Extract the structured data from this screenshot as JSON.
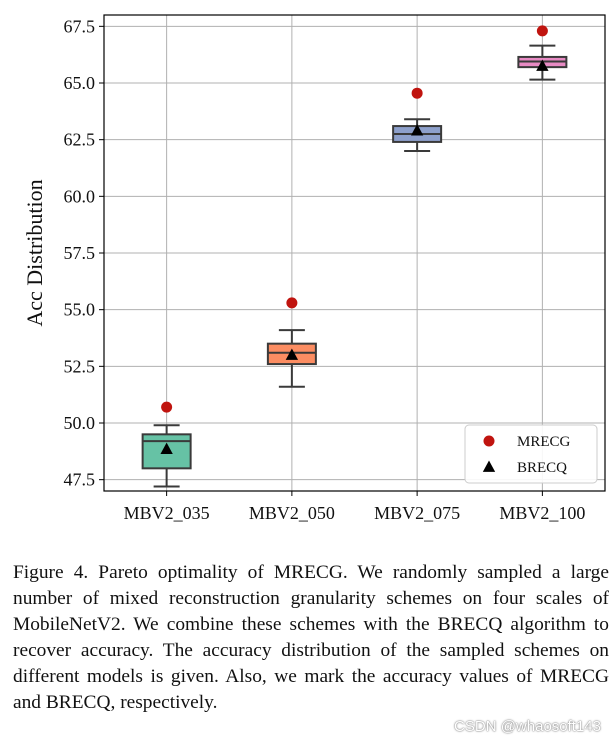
{
  "chart_data": {
    "type": "boxplot",
    "title": "",
    "xlabel": "",
    "ylabel": "Acc Distribution",
    "ylim": [
      47.0,
      68.0
    ],
    "yticks": [
      47.5,
      50.0,
      52.5,
      55.0,
      57.5,
      60.0,
      62.5,
      65.0,
      67.5
    ],
    "ytick_labels": [
      "47.5",
      "50.0",
      "52.5",
      "55.0",
      "57.5",
      "60.0",
      "62.5",
      "65.0",
      "67.5"
    ],
    "categories": [
      "MBV2_035",
      "MBV2_050",
      "MBV2_075",
      "MBV2_100"
    ],
    "grid": true,
    "legend_position": "bottom-right",
    "boxes": [
      {
        "category": "MBV2_035",
        "whisker_low": 47.2,
        "q1": 48.0,
        "median": 49.2,
        "q3": 49.5,
        "whisker_high": 49.9,
        "color": "#66c2a5"
      },
      {
        "category": "MBV2_050",
        "whisker_low": 51.6,
        "q1": 52.6,
        "median": 53.1,
        "q3": 53.5,
        "whisker_high": 54.1,
        "color": "#fc8d62"
      },
      {
        "category": "MBV2_075",
        "whisker_low": 62.0,
        "q1": 62.4,
        "median": 62.75,
        "q3": 63.1,
        "whisker_high": 63.4,
        "color": "#8da0cb"
      },
      {
        "category": "MBV2_100",
        "whisker_low": 65.15,
        "q1": 65.7,
        "median": 65.95,
        "q3": 66.15,
        "whisker_high": 66.65,
        "color": "#e78ac3"
      }
    ],
    "series": [
      {
        "name": "MRECG",
        "marker": "circle",
        "color": "#c0140f",
        "values": [
          50.7,
          55.3,
          64.55,
          67.3
        ]
      },
      {
        "name": "BRECQ",
        "marker": "triangle",
        "color": "#000000",
        "values": [
          48.85,
          53.0,
          62.9,
          65.75
        ]
      }
    ]
  },
  "caption": "Figure 4.  Pareto optimality of MRECG. We randomly sampled a large number of mixed reconstruction granularity schemes on four scales of MobileNetV2. We combine these schemes with the BRECQ algorithm to recover accuracy. The accuracy distribution of the sampled schemes on different models is given.  Also, we mark the accuracy values of MRECG and BRECQ, respectively.",
  "watermark": "CSDN @whaosoft143"
}
